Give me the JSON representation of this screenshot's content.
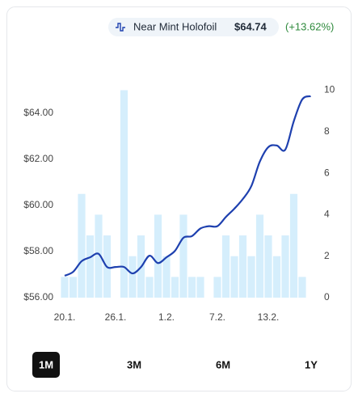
{
  "chart_data": {
    "type": "bar_line",
    "categories": [
      "20.1.",
      null,
      null,
      null,
      null,
      null,
      "26.1.",
      null,
      null,
      null,
      null,
      null,
      "1.2.",
      null,
      null,
      null,
      null,
      null,
      "7.2.",
      null,
      null,
      null,
      null,
      null,
      "13.2.",
      null,
      null,
      null,
      null,
      null
    ],
    "series": [
      {
        "name": "Near Mint Holofoil",
        "color": "#1e40af",
        "values": [
          56.95,
          57.12,
          57.58,
          57.75,
          57.9,
          57.33,
          57.33,
          57.33,
          57.05,
          57.33,
          57.82,
          57.5,
          57.75,
          58.03,
          58.6,
          58.67,
          59.0,
          59.1,
          59.1,
          59.5,
          59.86,
          60.28,
          60.84,
          61.9,
          62.53,
          62.6,
          62.42,
          63.65,
          64.6,
          64.74
        ]
      },
      {
        "color": "#d5eefc",
        "axis": "y2",
        "values": [
          1,
          1,
          5,
          3,
          4,
          3,
          0,
          10,
          2,
          3,
          1,
          4,
          2,
          1,
          4,
          1,
          1,
          0,
          1,
          3,
          2,
          3,
          2,
          4,
          3,
          2,
          3,
          5,
          1,
          0
        ]
      }
    ],
    "price_label": "$64.74",
    "change_label": "(+13.62%)",
    "change_color": "#2f8a3d",
    "ylim": [
      56,
      65
    ],
    "yticks": [
      {
        "value": 56,
        "label": "$56.00"
      },
      {
        "value": 58,
        "label": "$58.00"
      },
      {
        "value": 60,
        "label": "$60.00"
      },
      {
        "value": 62,
        "label": "$62.00"
      },
      {
        "value": 64,
        "label": "$64.00"
      }
    ],
    "y2lim": [
      0,
      10
    ],
    "y2ticks": [
      0,
      2,
      4,
      6,
      8,
      10
    ]
  },
  "range_buttons": [
    "1M",
    "3M",
    "6M",
    "1Y"
  ],
  "selected_range": "1M"
}
